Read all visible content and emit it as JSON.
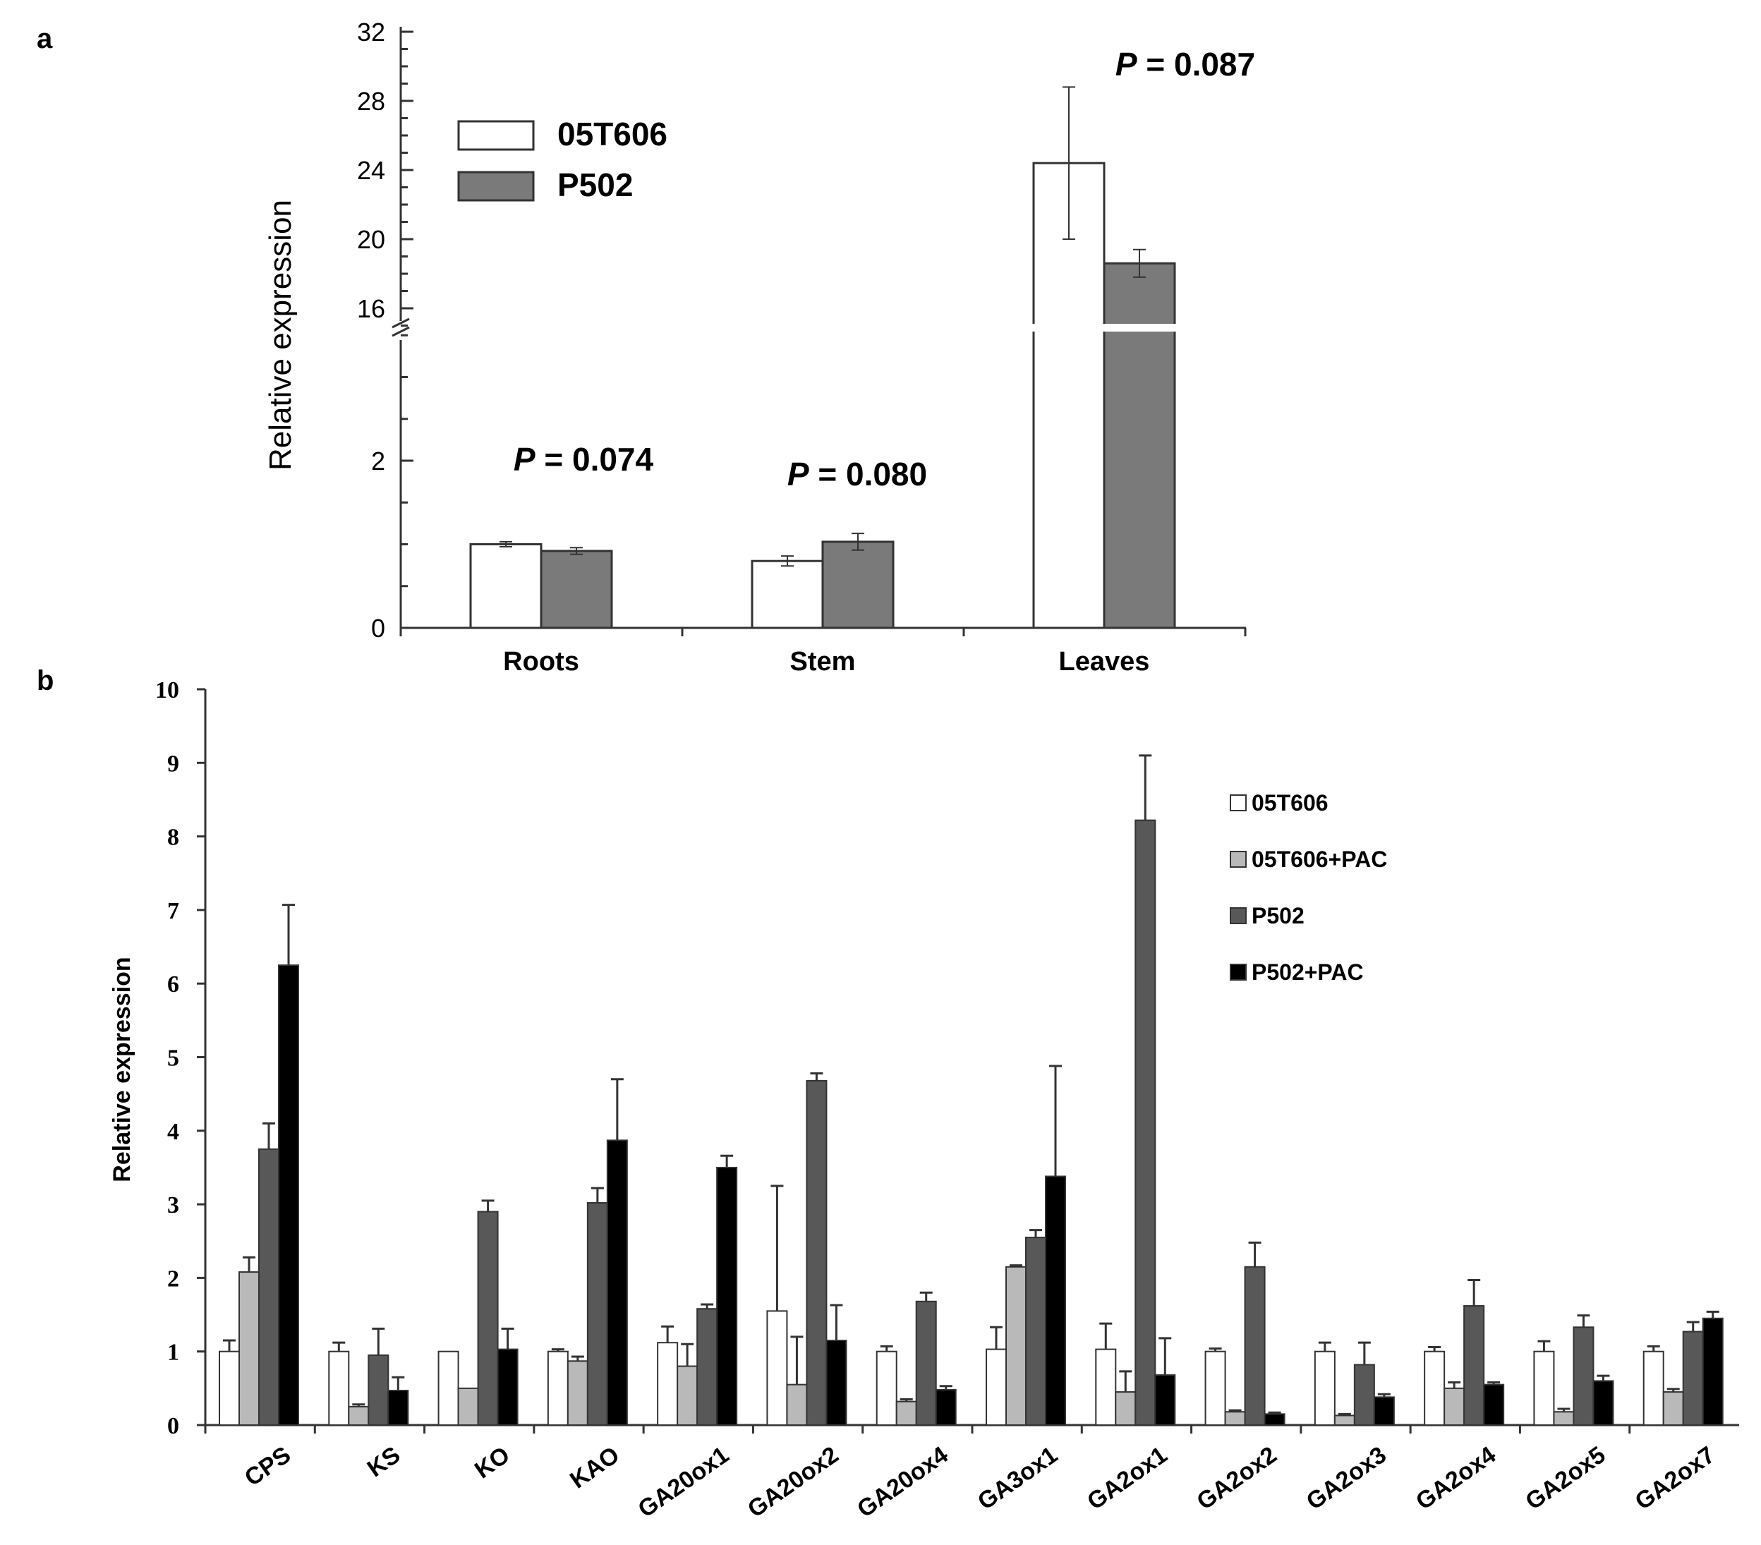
{
  "colors": {
    "white_bar": "#ffffff",
    "light_gray": "#b9b9b9",
    "mid_gray": "#7a7a7a",
    "dark_gray": "#585858",
    "black": "#000000",
    "axis": "#333333"
  },
  "panel_labels": {
    "a": "a",
    "b": "b"
  },
  "chart_data": [
    {
      "type": "bar",
      "panel": "a",
      "categories": [
        "Roots",
        "Stem",
        "Leaves"
      ],
      "ylabel": "Relative expression",
      "xlabel": "",
      "axis_break": {
        "lower_range": [
          0,
          4
        ],
        "upper_range": [
          14.5,
          32
        ]
      },
      "lower_ticks": [
        "0",
        "2"
      ],
      "upper_ticks": [
        "16",
        "20",
        "24",
        "28",
        "32"
      ],
      "series": [
        {
          "name": "05T606",
          "color": "#ffffff",
          "values": [
            1.0,
            0.8,
            24.4
          ],
          "errors": [
            0.03,
            0.06,
            4.4
          ]
        },
        {
          "name": "P502",
          "color": "#7a7a7a",
          "values": [
            0.92,
            1.03,
            18.6
          ],
          "errors": [
            0.04,
            0.1,
            0.8
          ]
        }
      ],
      "annotations": [
        {
          "italic": "P",
          "text": " = 0.074",
          "category": "Roots"
        },
        {
          "italic": "P",
          "text": " = 0.080",
          "category": "Stem"
        },
        {
          "italic": "P",
          "text": " = 0.087",
          "category": "Leaves"
        }
      ],
      "legend": {
        "position": "top-left",
        "entries": [
          "05T606",
          "P502"
        ]
      }
    },
    {
      "type": "bar",
      "panel": "b",
      "categories": [
        "CPS",
        "KS",
        "KO",
        "KAO",
        "GA20ox1",
        "GA20ox2",
        "GA20ox4",
        "GA3ox1",
        "GA2ox1",
        "GA2ox2",
        "GA2ox3",
        "GA2ox4",
        "GA2ox5",
        "GA2ox7"
      ],
      "ylabel": "Relative expression",
      "xlabel": "",
      "ylim": [
        0,
        10
      ],
      "yticks": [
        "0",
        "1",
        "2",
        "3",
        "4",
        "5",
        "6",
        "7",
        "8",
        "9",
        "10"
      ],
      "series": [
        {
          "name": "05T606",
          "color": "#ffffff",
          "values": [
            1.0,
            1.0,
            1.0,
            1.0,
            1.12,
            1.55,
            1.0,
            1.03,
            1.03,
            1.0,
            1.0,
            1.0,
            1.0,
            1.0
          ],
          "errors": [
            0.15,
            0.12,
            0.0,
            0.03,
            0.22,
            1.7,
            0.07,
            0.3,
            0.35,
            0.04,
            0.12,
            0.06,
            0.14,
            0.07
          ]
        },
        {
          "name": "05T606+PAC",
          "color": "#b9b9b9",
          "values": [
            2.08,
            0.25,
            0.5,
            0.87,
            0.8,
            0.55,
            0.32,
            2.15,
            0.45,
            0.18,
            0.13,
            0.5,
            0.18,
            0.45
          ],
          "errors": [
            0.2,
            0.03,
            0.0,
            0.06,
            0.3,
            0.65,
            0.03,
            0.02,
            0.28,
            0.02,
            0.02,
            0.08,
            0.04,
            0.04
          ]
        },
        {
          "name": "P502",
          "color": "#585858",
          "values": [
            3.75,
            0.95,
            2.9,
            3.02,
            1.58,
            4.68,
            1.68,
            2.55,
            8.22,
            2.15,
            0.82,
            1.62,
            1.33,
            1.27
          ],
          "errors": [
            0.35,
            0.36,
            0.15,
            0.2,
            0.06,
            0.1,
            0.12,
            0.1,
            0.88,
            0.33,
            0.3,
            0.35,
            0.16,
            0.13
          ]
        },
        {
          "name": "P502+PAC",
          "color": "#000000",
          "values": [
            6.25,
            0.47,
            1.03,
            3.87,
            3.5,
            1.15,
            0.48,
            3.38,
            0.68,
            0.15,
            0.38,
            0.55,
            0.6,
            1.45
          ],
          "errors": [
            0.82,
            0.18,
            0.28,
            0.83,
            0.16,
            0.48,
            0.05,
            1.5,
            0.5,
            0.02,
            0.04,
            0.03,
            0.07,
            0.09
          ]
        }
      ],
      "legend": {
        "position": "right",
        "entries": [
          "05T606",
          "05T606+PAC",
          "P502",
          "P502+PAC"
        ]
      }
    }
  ]
}
